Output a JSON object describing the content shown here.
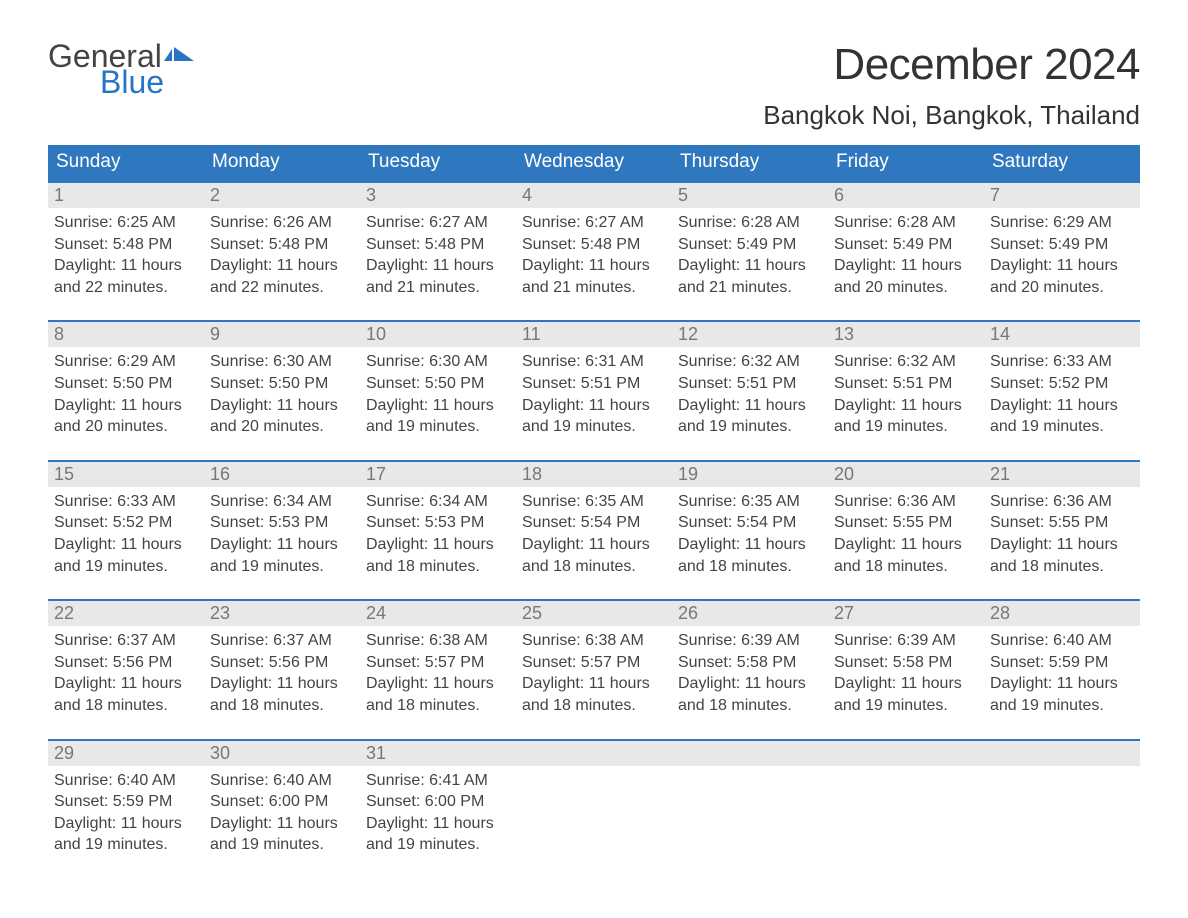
{
  "brand": {
    "word1": "General",
    "word2": "Blue",
    "flag_color": "#2874c4",
    "text_gray": "#444444"
  },
  "header": {
    "month_title": "December 2024",
    "location": "Bangkok Noi, Bangkok, Thailand"
  },
  "style": {
    "header_bg": "#2f78bf",
    "header_text": "#ffffff",
    "daynum_bg": "#e8e8e8",
    "daynum_color": "#777777",
    "body_text": "#444444",
    "week_border": "#2f78bf",
    "page_bg": "#ffffff",
    "month_title_fontsize": 44,
    "location_fontsize": 26,
    "weekday_fontsize": 19,
    "daynum_fontsize": 18,
    "details_fontsize": 16
  },
  "weekdays": [
    "Sunday",
    "Monday",
    "Tuesday",
    "Wednesday",
    "Thursday",
    "Friday",
    "Saturday"
  ],
  "weeks": [
    [
      {
        "n": "1",
        "sunrise": "Sunrise: 6:25 AM",
        "sunset": "Sunset: 5:48 PM",
        "d1": "Daylight: 11 hours",
        "d2": "and 22 minutes."
      },
      {
        "n": "2",
        "sunrise": "Sunrise: 6:26 AM",
        "sunset": "Sunset: 5:48 PM",
        "d1": "Daylight: 11 hours",
        "d2": "and 22 minutes."
      },
      {
        "n": "3",
        "sunrise": "Sunrise: 6:27 AM",
        "sunset": "Sunset: 5:48 PM",
        "d1": "Daylight: 11 hours",
        "d2": "and 21 minutes."
      },
      {
        "n": "4",
        "sunrise": "Sunrise: 6:27 AM",
        "sunset": "Sunset: 5:48 PM",
        "d1": "Daylight: 11 hours",
        "d2": "and 21 minutes."
      },
      {
        "n": "5",
        "sunrise": "Sunrise: 6:28 AM",
        "sunset": "Sunset: 5:49 PM",
        "d1": "Daylight: 11 hours",
        "d2": "and 21 minutes."
      },
      {
        "n": "6",
        "sunrise": "Sunrise: 6:28 AM",
        "sunset": "Sunset: 5:49 PM",
        "d1": "Daylight: 11 hours",
        "d2": "and 20 minutes."
      },
      {
        "n": "7",
        "sunrise": "Sunrise: 6:29 AM",
        "sunset": "Sunset: 5:49 PM",
        "d1": "Daylight: 11 hours",
        "d2": "and 20 minutes."
      }
    ],
    [
      {
        "n": "8",
        "sunrise": "Sunrise: 6:29 AM",
        "sunset": "Sunset: 5:50 PM",
        "d1": "Daylight: 11 hours",
        "d2": "and 20 minutes."
      },
      {
        "n": "9",
        "sunrise": "Sunrise: 6:30 AM",
        "sunset": "Sunset: 5:50 PM",
        "d1": "Daylight: 11 hours",
        "d2": "and 20 minutes."
      },
      {
        "n": "10",
        "sunrise": "Sunrise: 6:30 AM",
        "sunset": "Sunset: 5:50 PM",
        "d1": "Daylight: 11 hours",
        "d2": "and 19 minutes."
      },
      {
        "n": "11",
        "sunrise": "Sunrise: 6:31 AM",
        "sunset": "Sunset: 5:51 PM",
        "d1": "Daylight: 11 hours",
        "d2": "and 19 minutes."
      },
      {
        "n": "12",
        "sunrise": "Sunrise: 6:32 AM",
        "sunset": "Sunset: 5:51 PM",
        "d1": "Daylight: 11 hours",
        "d2": "and 19 minutes."
      },
      {
        "n": "13",
        "sunrise": "Sunrise: 6:32 AM",
        "sunset": "Sunset: 5:51 PM",
        "d1": "Daylight: 11 hours",
        "d2": "and 19 minutes."
      },
      {
        "n": "14",
        "sunrise": "Sunrise: 6:33 AM",
        "sunset": "Sunset: 5:52 PM",
        "d1": "Daylight: 11 hours",
        "d2": "and 19 minutes."
      }
    ],
    [
      {
        "n": "15",
        "sunrise": "Sunrise: 6:33 AM",
        "sunset": "Sunset: 5:52 PM",
        "d1": "Daylight: 11 hours",
        "d2": "and 19 minutes."
      },
      {
        "n": "16",
        "sunrise": "Sunrise: 6:34 AM",
        "sunset": "Sunset: 5:53 PM",
        "d1": "Daylight: 11 hours",
        "d2": "and 19 minutes."
      },
      {
        "n": "17",
        "sunrise": "Sunrise: 6:34 AM",
        "sunset": "Sunset: 5:53 PM",
        "d1": "Daylight: 11 hours",
        "d2": "and 18 minutes."
      },
      {
        "n": "18",
        "sunrise": "Sunrise: 6:35 AM",
        "sunset": "Sunset: 5:54 PM",
        "d1": "Daylight: 11 hours",
        "d2": "and 18 minutes."
      },
      {
        "n": "19",
        "sunrise": "Sunrise: 6:35 AM",
        "sunset": "Sunset: 5:54 PM",
        "d1": "Daylight: 11 hours",
        "d2": "and 18 minutes."
      },
      {
        "n": "20",
        "sunrise": "Sunrise: 6:36 AM",
        "sunset": "Sunset: 5:55 PM",
        "d1": "Daylight: 11 hours",
        "d2": "and 18 minutes."
      },
      {
        "n": "21",
        "sunrise": "Sunrise: 6:36 AM",
        "sunset": "Sunset: 5:55 PM",
        "d1": "Daylight: 11 hours",
        "d2": "and 18 minutes."
      }
    ],
    [
      {
        "n": "22",
        "sunrise": "Sunrise: 6:37 AM",
        "sunset": "Sunset: 5:56 PM",
        "d1": "Daylight: 11 hours",
        "d2": "and 18 minutes."
      },
      {
        "n": "23",
        "sunrise": "Sunrise: 6:37 AM",
        "sunset": "Sunset: 5:56 PM",
        "d1": "Daylight: 11 hours",
        "d2": "and 18 minutes."
      },
      {
        "n": "24",
        "sunrise": "Sunrise: 6:38 AM",
        "sunset": "Sunset: 5:57 PM",
        "d1": "Daylight: 11 hours",
        "d2": "and 18 minutes."
      },
      {
        "n": "25",
        "sunrise": "Sunrise: 6:38 AM",
        "sunset": "Sunset: 5:57 PM",
        "d1": "Daylight: 11 hours",
        "d2": "and 18 minutes."
      },
      {
        "n": "26",
        "sunrise": "Sunrise: 6:39 AM",
        "sunset": "Sunset: 5:58 PM",
        "d1": "Daylight: 11 hours",
        "d2": "and 18 minutes."
      },
      {
        "n": "27",
        "sunrise": "Sunrise: 6:39 AM",
        "sunset": "Sunset: 5:58 PM",
        "d1": "Daylight: 11 hours",
        "d2": "and 19 minutes."
      },
      {
        "n": "28",
        "sunrise": "Sunrise: 6:40 AM",
        "sunset": "Sunset: 5:59 PM",
        "d1": "Daylight: 11 hours",
        "d2": "and 19 minutes."
      }
    ],
    [
      {
        "n": "29",
        "sunrise": "Sunrise: 6:40 AM",
        "sunset": "Sunset: 5:59 PM",
        "d1": "Daylight: 11 hours",
        "d2": "and 19 minutes."
      },
      {
        "n": "30",
        "sunrise": "Sunrise: 6:40 AM",
        "sunset": "Sunset: 6:00 PM",
        "d1": "Daylight: 11 hours",
        "d2": "and 19 minutes."
      },
      {
        "n": "31",
        "sunrise": "Sunrise: 6:41 AM",
        "sunset": "Sunset: 6:00 PM",
        "d1": "Daylight: 11 hours",
        "d2": "and 19 minutes."
      },
      null,
      null,
      null,
      null
    ]
  ]
}
